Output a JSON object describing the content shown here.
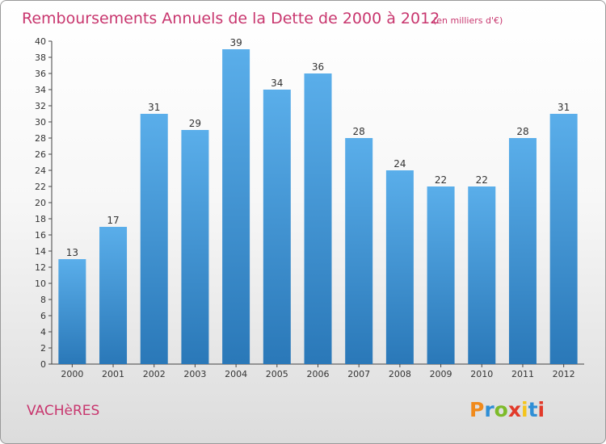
{
  "chart_data": {
    "type": "bar",
    "title": "Remboursements Annuels de la Dette de 2000 à 2012",
    "subtitle": "(en milliers d'€)",
    "categories": [
      "2000",
      "2001",
      "2002",
      "2003",
      "2004",
      "2005",
      "2006",
      "2007",
      "2008",
      "2009",
      "2010",
      "2011",
      "2012"
    ],
    "values": [
      13,
      17,
      31,
      29,
      39,
      34,
      36,
      28,
      24,
      22,
      22,
      28,
      31
    ],
    "ylim": [
      0,
      40
    ],
    "yticks": [
      0,
      2,
      4,
      6,
      8,
      10,
      12,
      14,
      16,
      18,
      20,
      22,
      24,
      26,
      28,
      30,
      32,
      34,
      36,
      38,
      40
    ],
    "xlabel": "",
    "ylabel": "",
    "grid": false,
    "data_labels": true,
    "bar_color_top": "#5aaeea",
    "bar_color_bottom": "#2a78b8"
  },
  "footer": {
    "commune": "VACHèRES",
    "logo": "Proxiti",
    "logo_colors": [
      "#f08a1c",
      "#2f8fd6",
      "#7dbb2a",
      "#e23a2a",
      "#f5c41a",
      "#2f8fd6",
      "#e23a2a"
    ]
  },
  "colors": {
    "title": "#c8366e",
    "axis": "#444444"
  }
}
